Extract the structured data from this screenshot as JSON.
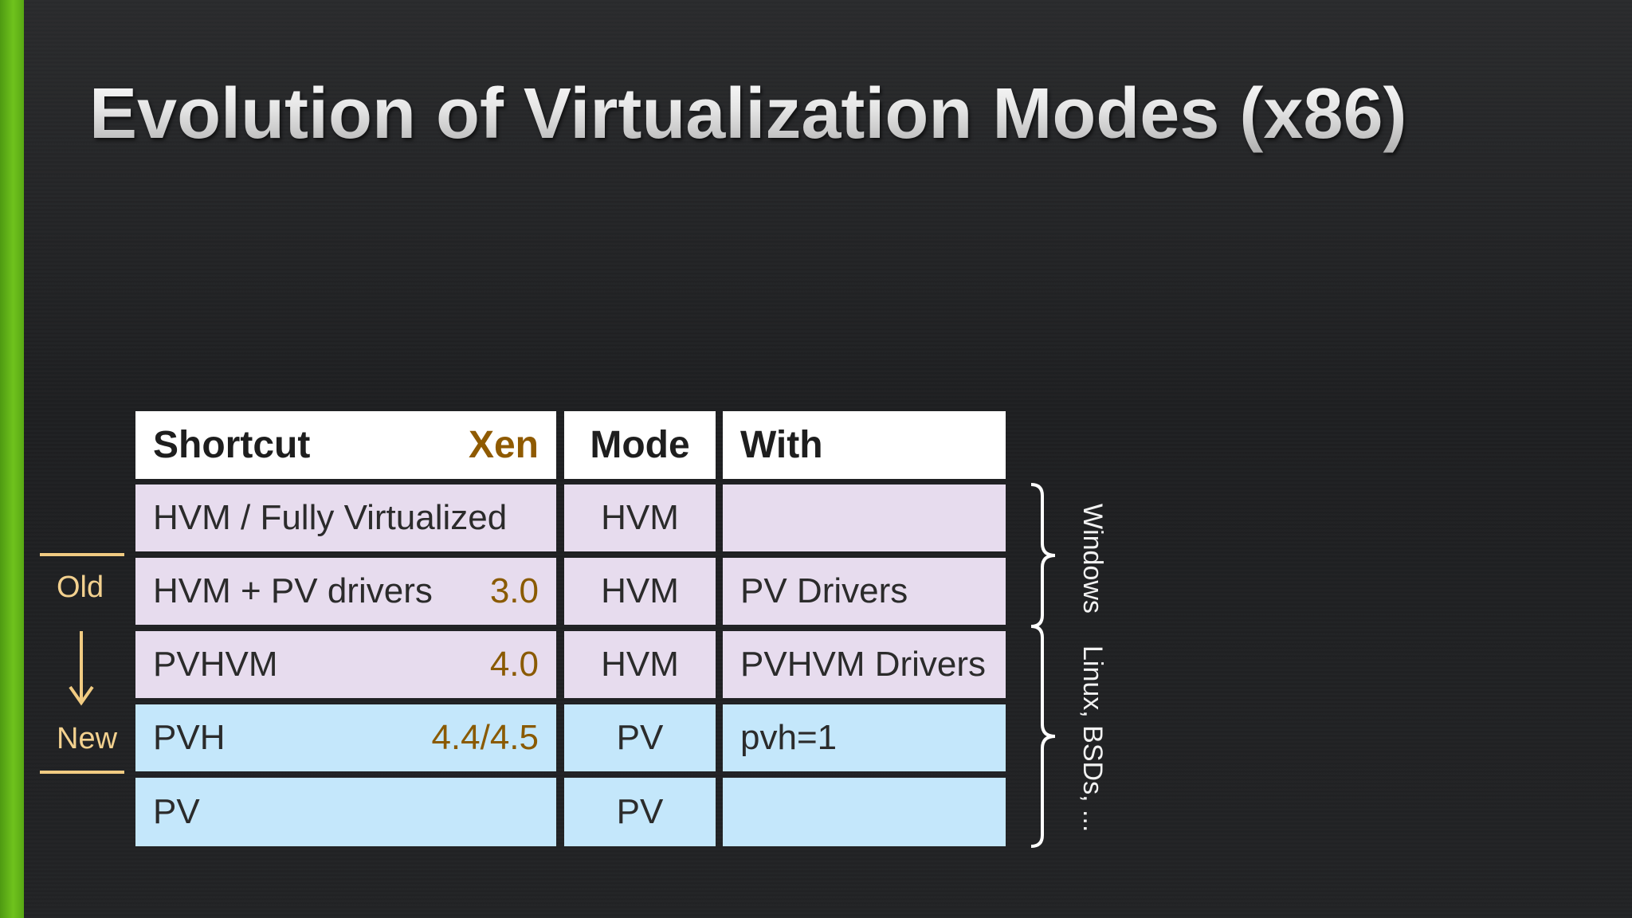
{
  "slide": {
    "title": "Evolution of Virtualization Modes (x86)"
  },
  "table": {
    "header": {
      "shortcut": "Shortcut",
      "xen": "Xen",
      "mode": "Mode",
      "with": "With"
    },
    "rows": [
      {
        "shortcut": "HVM / Fully Virtualized",
        "xen": "",
        "mode": "HVM",
        "with": "",
        "color": "#e7dcee"
      },
      {
        "shortcut": "HVM + PV drivers",
        "xen": "3.0",
        "mode": "HVM",
        "with": "PV Drivers",
        "color": "#e7dcee"
      },
      {
        "shortcut": "PVHVM",
        "xen": "4.0",
        "mode": "HVM",
        "with": "PVHVM Drivers",
        "color": "#e7dcee"
      },
      {
        "shortcut": "PVH",
        "xen": "4.4/4.5",
        "mode": "PV",
        "with": "pvh=1",
        "color": "#c4e7fb"
      },
      {
        "shortcut": "PV",
        "xen": "",
        "mode": "PV",
        "with": "",
        "color": "#c4e7fb"
      }
    ]
  },
  "timeline": {
    "old": "Old",
    "new": "New",
    "arrow_icon": "arrow-down-icon",
    "color": "#f1cb82"
  },
  "groups": {
    "windows": "Windows",
    "linux": "Linux, BSDs, ..."
  },
  "colors": {
    "accent": "#6fc21d",
    "xen_version": "#8a5a00",
    "hvm_row": "#e7dcee",
    "pv_row": "#c4e7fb"
  }
}
